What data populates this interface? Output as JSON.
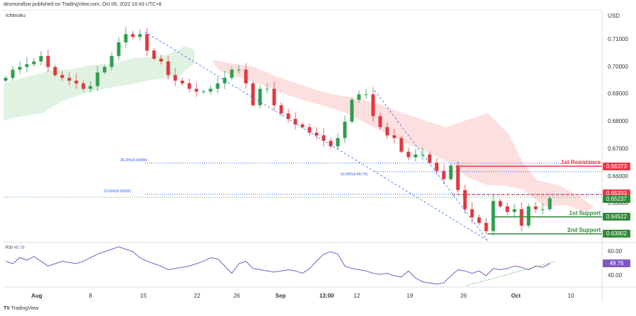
{
  "header": {
    "published": "desmondlzw published on TradingView.com, Oct 06, 2022 10:43 UTC+8",
    "indicator": "Ichimoku",
    "currency": "USD"
  },
  "footer": {
    "brand": "TradingView"
  },
  "colors": {
    "up": "#2e9e4e",
    "down": "#e0383e",
    "resistance": "#f23645",
    "support": "#2e8b38",
    "fib": "#2962ff",
    "rsi": "#7e57c2"
  },
  "chart_data": {
    "type": "candlestick",
    "title": "Ichimoku",
    "price_axis": {
      "ticks": [
        "0.71000",
        "0.70000",
        "0.69000",
        "0.68000",
        "0.67000",
        "0.66000",
        "0.65000"
      ],
      "range": [
        0.636,
        0.7145
      ]
    },
    "x_ticks": [
      "Aug",
      "8",
      "15",
      "22",
      "26",
      "Sep",
      "13:00",
      "12",
      "19",
      "26",
      "Oct",
      "10"
    ],
    "closes": [
      0.696,
      0.699,
      0.7,
      0.701,
      0.702,
      0.704,
      0.7,
      0.697,
      0.696,
      0.695,
      0.694,
      0.692,
      0.693,
      0.698,
      0.7,
      0.704,
      0.709,
      0.712,
      0.711,
      0.712,
      0.706,
      0.703,
      0.702,
      0.697,
      0.695,
      0.694,
      0.692,
      0.691,
      0.691,
      0.692,
      0.694,
      0.696,
      0.699,
      0.699,
      0.694,
      0.686,
      0.692,
      0.692,
      0.686,
      0.683,
      0.681,
      0.679,
      0.678,
      0.676,
      0.675,
      0.673,
      0.671,
      0.674,
      0.68,
      0.688,
      0.69,
      0.69,
      0.682,
      0.678,
      0.675,
      0.674,
      0.669,
      0.667,
      0.668,
      0.668,
      0.665,
      0.662,
      0.659,
      0.664,
      0.655,
      0.648,
      0.645,
      0.643,
      0.64,
      0.651,
      0.649,
      0.647,
      0.648,
      0.642,
      0.649,
      0.648,
      0.648,
      0.652
    ],
    "fib_levels": [
      {
        "label": "38.20%(0.66484)",
        "value": 0.66484
      },
      {
        "label": "50.00%(0.66175)",
        "value": 0.66175
      },
      {
        "label": "23.60%(0.65350)",
        "value": 0.6535
      }
    ],
    "levels": [
      {
        "name": "1st Resistance",
        "value": "0.66373",
        "price": 0.66373
      },
      {
        "name": "1st Support",
        "value": "0.64522",
        "price": 0.64522
      },
      {
        "name": "2nd Support",
        "value": "0.63902",
        "price": 0.63902
      }
    ],
    "current_tags": [
      {
        "value": "0.65333",
        "price": 0.65333,
        "color": "#f23645"
      },
      {
        "value": "0.65237",
        "price": 0.65237,
        "color": "#2e8b38"
      }
    ],
    "rsi": {
      "label": "RSI",
      "value": "49.76",
      "ticks": [
        "60.00",
        "40.00"
      ],
      "values": [
        52,
        50,
        55,
        53,
        56,
        52,
        48,
        50,
        52,
        51,
        50,
        52,
        55,
        58,
        60,
        62,
        64,
        62,
        60,
        55,
        52,
        50,
        48,
        45,
        46,
        47,
        48,
        50,
        52,
        55,
        54,
        48,
        42,
        50,
        52,
        46,
        45,
        44,
        43,
        44,
        45,
        44,
        42,
        46,
        52,
        58,
        60,
        58,
        48,
        46,
        45,
        44,
        42,
        41,
        42,
        40,
        39,
        44,
        38,
        35,
        34,
        33,
        34,
        40,
        45,
        44,
        42,
        44,
        40,
        46,
        45,
        46,
        48,
        47,
        45,
        48,
        47,
        50
      ]
    }
  }
}
